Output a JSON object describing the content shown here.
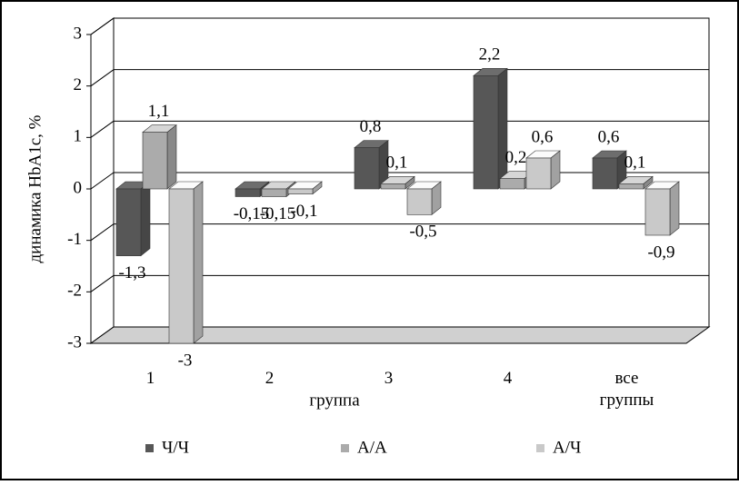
{
  "chart_data": {
    "type": "bar3d",
    "y_label": "динамика HbA1c, %",
    "x_label": "группа",
    "categories": [
      "1",
      "2",
      "3",
      "4",
      "все группы"
    ],
    "ylim": [
      -3,
      3
    ],
    "yticks": [
      -3,
      -2,
      -1,
      0,
      1,
      2,
      3
    ],
    "grid": true,
    "legend": "bottom",
    "series": [
      {
        "name": "Ч/Ч",
        "color": "#575757",
        "values": [
          -1.3,
          -0.15,
          0.8,
          2.2,
          0.6
        ],
        "value_labels": [
          "-1,3",
          "-0,15",
          "0,8",
          "2,2",
          "0,6"
        ]
      },
      {
        "name": "А/А",
        "color": "#ababab",
        "values": [
          1.1,
          -0.15,
          0.1,
          0.2,
          0.1
        ],
        "value_labels": [
          "1,1",
          "-0,15",
          "0,1",
          "0,2",
          "0,1"
        ]
      },
      {
        "name": "А/Ч",
        "color": "#c9c9c9",
        "values": [
          -3,
          -0.1,
          -0.5,
          0.6,
          -0.9
        ],
        "value_labels": [
          "-3",
          "-0,1",
          "-0,5",
          "0,6",
          "-0,9"
        ]
      }
    ]
  }
}
